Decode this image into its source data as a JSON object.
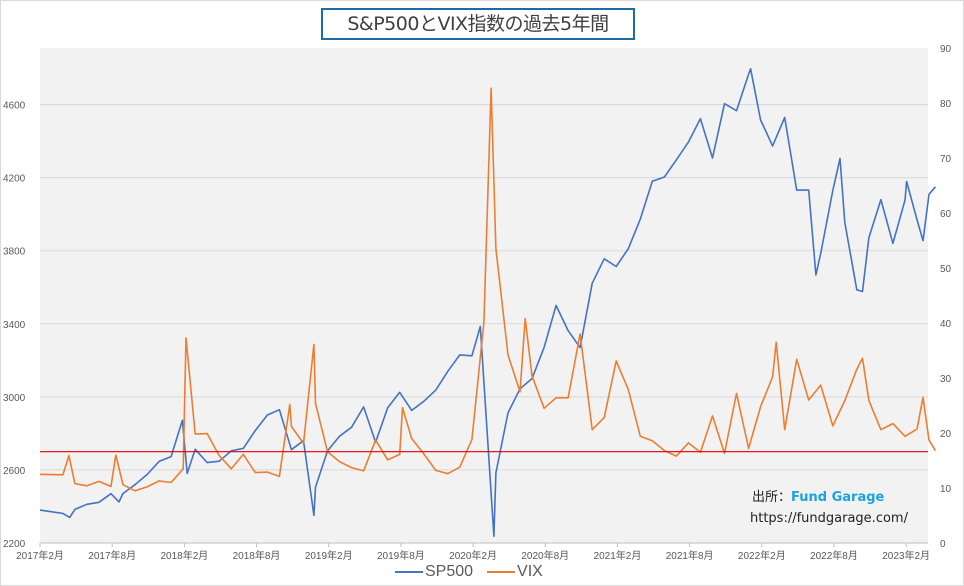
{
  "chart_data": {
    "type": "line",
    "title": "S&P500とVIX指数の過去5年間",
    "x_tick_labels": [
      "2017年2月",
      "2017年8月",
      "2018年2月",
      "2018年8月",
      "2019年2月",
      "2019年8月",
      "2020年2月",
      "2020年8月",
      "2021年2月",
      "2021年8月",
      "2022年2月",
      "2022年8月",
      "2023年2月"
    ],
    "y_left": {
      "ticks": [
        2200,
        2600,
        3000,
        3400,
        3800,
        4200,
        4600
      ],
      "ylim": [
        2200,
        4910
      ],
      "grid": true
    },
    "y_right": {
      "ticks": [
        0,
        10,
        20,
        30,
        40,
        50,
        60,
        70,
        80,
        90
      ],
      "ylim": [
        0,
        90
      ]
    },
    "reference_line": {
      "axis": "right",
      "value": 16.6,
      "color": "#e00000"
    },
    "legend": {
      "placement": "bottom",
      "entries": [
        "SP500",
        "VIX"
      ]
    },
    "series": [
      {
        "name": "SP500",
        "axis": "left",
        "color": "#4472c4",
        "points": [
          [
            "2017-02-01",
            2380
          ],
          [
            "2017-03",
            2362
          ],
          [
            "2017-04-15",
            2340
          ],
          [
            "2017-04",
            2384
          ],
          [
            "2017-05",
            2412
          ],
          [
            "2017-06",
            2423
          ],
          [
            "2017-07",
            2470
          ],
          [
            "2017-08-18",
            2425
          ],
          [
            "2017-08",
            2471
          ],
          [
            "2017-09",
            2519
          ],
          [
            "2017-10",
            2575
          ],
          [
            "2017-11",
            2647
          ],
          [
            "2017-12",
            2673
          ],
          [
            "2018-01-26",
            2872
          ],
          [
            "2018-02-08",
            2581
          ],
          [
            "2018-02",
            2713
          ],
          [
            "2018-03",
            2640
          ],
          [
            "2018-04",
            2648
          ],
          [
            "2018-05",
            2705
          ],
          [
            "2018-06",
            2718
          ],
          [
            "2018-07",
            2816
          ],
          [
            "2018-08",
            2901
          ],
          [
            "2018-09",
            2930
          ],
          [
            "2018-10",
            2711
          ],
          [
            "2018-11",
            2760
          ],
          [
            "2018-12-24",
            2351
          ],
          [
            "2018-12",
            2506
          ],
          [
            "2019-01",
            2704
          ],
          [
            "2019-02",
            2784
          ],
          [
            "2019-03",
            2834
          ],
          [
            "2019-04",
            2945
          ],
          [
            "2019-05",
            2752
          ],
          [
            "2019-06",
            2941
          ],
          [
            "2019-07",
            3025
          ],
          [
            "2019-08",
            2926
          ],
          [
            "2019-09",
            2976
          ],
          [
            "2019-10",
            3037
          ],
          [
            "2019-11",
            3140
          ],
          [
            "2019-12",
            3230
          ],
          [
            "2020-01",
            3225
          ],
          [
            "2020-02-19",
            3386
          ],
          [
            "2020-03-23",
            2237
          ],
          [
            "2020-03",
            2584
          ],
          [
            "2020-04",
            2912
          ],
          [
            "2020-05",
            3044
          ],
          [
            "2020-06",
            3100
          ],
          [
            "2020-07",
            3271
          ],
          [
            "2020-08",
            3500
          ],
          [
            "2020-09",
            3363
          ],
          [
            "2020-10",
            3270
          ],
          [
            "2020-11",
            3622
          ],
          [
            "2020-12",
            3756
          ],
          [
            "2021-01",
            3714
          ],
          [
            "2021-02",
            3811
          ],
          [
            "2021-03",
            3973
          ],
          [
            "2021-04",
            4181
          ],
          [
            "2021-05",
            4204
          ],
          [
            "2021-06",
            4298
          ],
          [
            "2021-07",
            4395
          ],
          [
            "2021-08",
            4523
          ],
          [
            "2021-09",
            4308
          ],
          [
            "2021-10",
            4605
          ],
          [
            "2021-11",
            4567
          ],
          [
            "2021-12",
            4766
          ],
          [
            "2022-01-03",
            4796
          ],
          [
            "2022-01",
            4516
          ],
          [
            "2022-02",
            4374
          ],
          [
            "2022-03",
            4530
          ],
          [
            "2022-04",
            4132
          ],
          [
            "2022-05",
            4132
          ],
          [
            "2022-06-16",
            3667
          ],
          [
            "2022-06",
            3785
          ],
          [
            "2022-07",
            4130
          ],
          [
            "2022-08-16",
            4305
          ],
          [
            "2022-08",
            3955
          ],
          [
            "2022-09",
            3586
          ],
          [
            "2022-10-12",
            3577
          ],
          [
            "2022-10",
            3872
          ],
          [
            "2022-11",
            4080
          ],
          [
            "2022-12",
            3840
          ],
          [
            "2023-01",
            4077
          ],
          [
            "2023-02-02",
            4179
          ],
          [
            "2023-02",
            3970
          ],
          [
            "2023-03-13",
            3855
          ],
          [
            "2023-03",
            4109
          ],
          [
            "2023-04-14",
            4150
          ]
        ]
      },
      {
        "name": "VIX",
        "axis": "right",
        "color": "#ed7d31",
        "points": [
          [
            "2017-02-01",
            12.5
          ],
          [
            "2017-03",
            12.4
          ],
          [
            "2017-04-13",
            15.9
          ],
          [
            "2017-04",
            10.8
          ],
          [
            "2017-05",
            10.4
          ],
          [
            "2017-06",
            11.2
          ],
          [
            "2017-07",
            10.3
          ],
          [
            "2017-08-10",
            16.0
          ],
          [
            "2017-08",
            10.6
          ],
          [
            "2017-09",
            9.5
          ],
          [
            "2017-10",
            10.2
          ],
          [
            "2017-11",
            11.3
          ],
          [
            "2017-12",
            11.0
          ],
          [
            "2018-01",
            13.5
          ],
          [
            "2018-02-05",
            37.3
          ],
          [
            "2018-02",
            19.8
          ],
          [
            "2018-03",
            19.9
          ],
          [
            "2018-04",
            15.9
          ],
          [
            "2018-05",
            13.5
          ],
          [
            "2018-06",
            16.1
          ],
          [
            "2018-07",
            12.8
          ],
          [
            "2018-08",
            12.9
          ],
          [
            "2018-09",
            12.1
          ],
          [
            "2018-10-24",
            25.2
          ],
          [
            "2018-10",
            21.2
          ],
          [
            "2018-11",
            18.1
          ],
          [
            "2018-12-24",
            36.1
          ],
          [
            "2018-12",
            25.4
          ],
          [
            "2019-01",
            16.6
          ],
          [
            "2019-02",
            14.8
          ],
          [
            "2019-03",
            13.7
          ],
          [
            "2019-04",
            13.1
          ],
          [
            "2019-05",
            18.7
          ],
          [
            "2019-06",
            15.1
          ],
          [
            "2019-07",
            16.1
          ],
          [
            "2019-08-05",
            24.6
          ],
          [
            "2019-08",
            19.0
          ],
          [
            "2019-09",
            16.2
          ],
          [
            "2019-10",
            13.2
          ],
          [
            "2019-11",
            12.6
          ],
          [
            "2019-12",
            13.8
          ],
          [
            "2020-01",
            18.8
          ],
          [
            "2020-02",
            40.1
          ],
          [
            "2020-03-16",
            82.7
          ],
          [
            "2020-03",
            53.5
          ],
          [
            "2020-04",
            34.2
          ],
          [
            "2020-05",
            27.5
          ],
          [
            "2020-06-11",
            40.8
          ],
          [
            "2020-06",
            30.4
          ],
          [
            "2020-07",
            24.5
          ],
          [
            "2020-08",
            26.4
          ],
          [
            "2020-09",
            26.4
          ],
          [
            "2020-10",
            38.0
          ],
          [
            "2020-11",
            20.6
          ],
          [
            "2020-12",
            22.8
          ],
          [
            "2021-01",
            33.1
          ],
          [
            "2021-02",
            27.9
          ],
          [
            "2021-03",
            19.4
          ],
          [
            "2021-04",
            18.6
          ],
          [
            "2021-05",
            16.8
          ],
          [
            "2021-06",
            15.8
          ],
          [
            "2021-07",
            18.2
          ],
          [
            "2021-08",
            16.5
          ],
          [
            "2021-09",
            23.1
          ],
          [
            "2021-10",
            16.3
          ],
          [
            "2021-11",
            27.2
          ],
          [
            "2021-12",
            17.2
          ],
          [
            "2022-01",
            24.8
          ],
          [
            "2022-02",
            30.2
          ],
          [
            "2022-03-07",
            36.5
          ],
          [
            "2022-03",
            20.6
          ],
          [
            "2022-04",
            33.4
          ],
          [
            "2022-05",
            26.0
          ],
          [
            "2022-06",
            28.7
          ],
          [
            "2022-07",
            21.3
          ],
          [
            "2022-08",
            25.9
          ],
          [
            "2022-09",
            31.6
          ],
          [
            "2022-10-12",
            33.6
          ],
          [
            "2022-10",
            25.9
          ],
          [
            "2022-11",
            20.6
          ],
          [
            "2022-12",
            21.7
          ],
          [
            "2023-01",
            19.4
          ],
          [
            "2023-02",
            20.7
          ],
          [
            "2023-03-13",
            26.5
          ],
          [
            "2023-03",
            18.7
          ],
          [
            "2023-04-14",
            16.8
          ]
        ]
      }
    ]
  },
  "annotation": {
    "source_label": "出所：",
    "source_brand": "Fund Garage",
    "url": "https://fundgarage.com/"
  }
}
